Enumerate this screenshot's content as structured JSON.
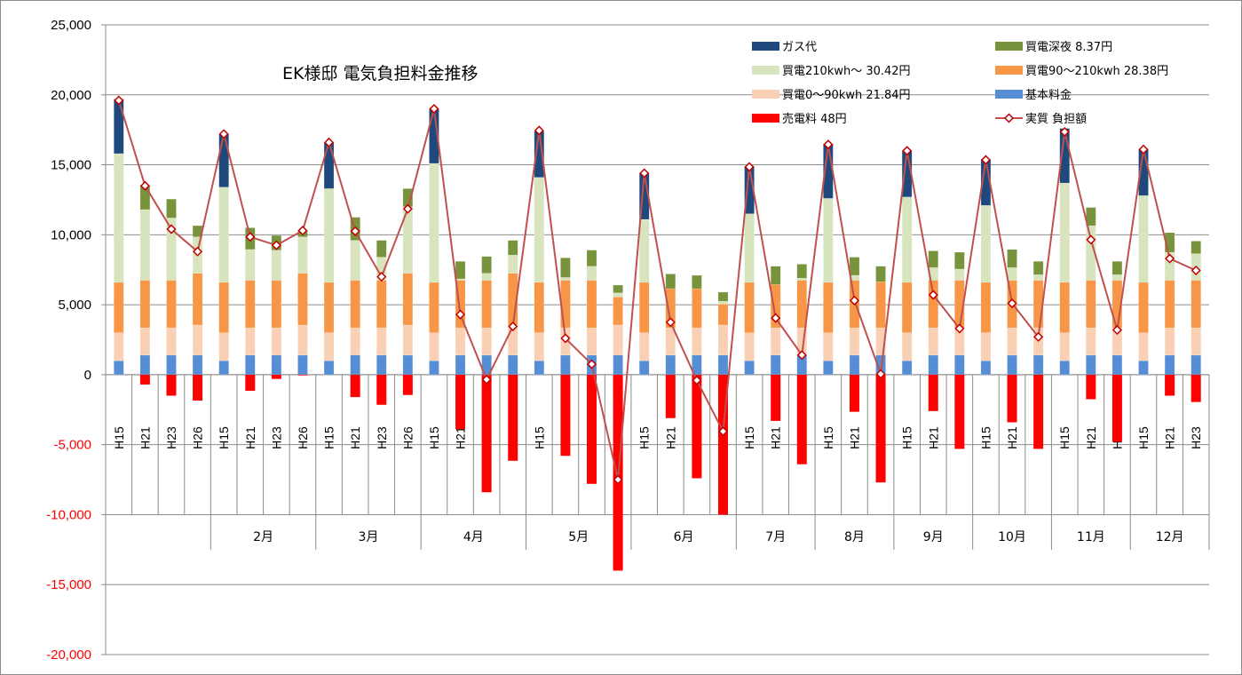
{
  "chart_data": {
    "type": "bar",
    "title": "EK様邸  電気負担料金推移",
    "ylim": [
      -20000,
      25000
    ],
    "yticks": [
      {
        "v": 25000,
        "label": "25,000"
      },
      {
        "v": 20000,
        "label": "20,000"
      },
      {
        "v": 15000,
        "label": "15,000"
      },
      {
        "v": 10000,
        "label": "10,000"
      },
      {
        "v": 5000,
        "label": "5,000"
      },
      {
        "v": 0,
        "label": "0"
      },
      {
        "v": -5000,
        "label": "-5,000"
      },
      {
        "v": -10000,
        "label": "-10,000"
      },
      {
        "v": -15000,
        "label": "-15,000"
      },
      {
        "v": -20000,
        "label": "-20,000"
      }
    ],
    "groups": [
      {
        "month": "",
        "years": [
          "H15",
          "H21",
          "H23",
          "H26"
        ]
      },
      {
        "month": "2月",
        "years": [
          "H15",
          "H21",
          "H23",
          "H26"
        ]
      },
      {
        "month": "3月",
        "years": [
          "H15",
          "H21",
          "H23",
          "H26"
        ]
      },
      {
        "month": "4月",
        "years": [
          "H15",
          "H21",
          "H23",
          "H26"
        ]
      },
      {
        "month": "5月",
        "years": [
          "H15",
          "H21",
          "H23",
          "H26"
        ]
      },
      {
        "month": "6月",
        "years": [
          "H15",
          "H21",
          "H23",
          "H26"
        ]
      },
      {
        "month": "7月",
        "years": [
          "H15",
          "H21",
          "H23"
        ]
      },
      {
        "month": "8月",
        "years": [
          "H15",
          "H21",
          "H23"
        ]
      },
      {
        "month": "9月",
        "years": [
          "H15",
          "H21",
          "H23"
        ]
      },
      {
        "month": "10月",
        "years": [
          "H15",
          "H21",
          "H23"
        ]
      },
      {
        "month": "11月",
        "years": [
          "H15",
          "H21",
          "H23"
        ]
      },
      {
        "month": "12月",
        "years": [
          "H15",
          "H21",
          "H23"
        ]
      }
    ],
    "stack_series": [
      {
        "key": "base",
        "name": "基本料金",
        "color": "#558ED5"
      },
      {
        "key": "t1",
        "name": "買電0～90kwh 21.84円",
        "color": "#FAD0B4"
      },
      {
        "key": "t2",
        "name": "買電90～210kwh 28.38円",
        "color": "#F79646"
      },
      {
        "key": "t3",
        "name": "買電210kwh～ 30.42円",
        "color": "#D7E4BD"
      },
      {
        "key": "night",
        "name": "買電深夜 8.37円",
        "color": "#77933C"
      },
      {
        "key": "gas",
        "name": "ガス代",
        "color": "#1F497D"
      }
    ],
    "sell_series": {
      "name": "売電料 48円",
      "color": "#FF0000"
    },
    "line_series": {
      "name": "実質 負担額",
      "color": "#C0504D"
    },
    "bars": [
      {
        "base": 1000,
        "t1": 2000,
        "t2": 3600,
        "t3": 9200,
        "night": 0,
        "gas": 3900,
        "sell": 0,
        "net": 19600
      },
      {
        "base": 1400,
        "t1": 1950,
        "t2": 3400,
        "t3": 5050,
        "night": 1700,
        "gas": 0,
        "sell": -700,
        "net": 13500
      },
      {
        "base": 1400,
        "t1": 1950,
        "t2": 3400,
        "t3": 4450,
        "night": 1350,
        "gas": 0,
        "sell": -1500,
        "net": 10400
      },
      {
        "base": 1400,
        "t1": 2150,
        "t2": 3700,
        "t3": 2600,
        "night": 800,
        "gas": 0,
        "sell": -1850,
        "net": 8800
      },
      {
        "base": 1000,
        "t1": 2000,
        "t2": 3600,
        "t3": 6800,
        "night": 0,
        "gas": 3800,
        "sell": 0,
        "net": 17200
      },
      {
        "base": 1400,
        "t1": 1950,
        "t2": 3400,
        "t3": 2200,
        "night": 1550,
        "gas": 0,
        "sell": -1150,
        "net": 9850
      },
      {
        "base": 1400,
        "t1": 1950,
        "t2": 3400,
        "t3": 2150,
        "night": 1050,
        "gas": 0,
        "sell": -300,
        "net": 9250
      },
      {
        "base": 1400,
        "t1": 2150,
        "t2": 3700,
        "t3": 2600,
        "night": 500,
        "gas": 0,
        "sell": -50,
        "net": 10300
      },
      {
        "base": 1000,
        "t1": 2000,
        "t2": 3600,
        "t3": 6700,
        "night": 0,
        "gas": 3300,
        "sell": 0,
        "net": 16600
      },
      {
        "base": 1400,
        "t1": 1950,
        "t2": 3400,
        "t3": 2850,
        "night": 1650,
        "gas": 0,
        "sell": -1600,
        "net": 10250
      },
      {
        "base": 1400,
        "t1": 1950,
        "t2": 3400,
        "t3": 1650,
        "night": 1200,
        "gas": 0,
        "sell": -2150,
        "net": 7000
      },
      {
        "base": 1400,
        "t1": 2150,
        "t2": 3700,
        "t3": 4750,
        "night": 1300,
        "gas": 0,
        "sell": -1450,
        "net": 11850
      },
      {
        "base": 1000,
        "t1": 2000,
        "t2": 3600,
        "t3": 8500,
        "night": 0,
        "gas": 3900,
        "sell": 0,
        "net": 19000
      },
      {
        "base": 1400,
        "t1": 1950,
        "t2": 3400,
        "t3": 100,
        "night": 1250,
        "gas": 0,
        "sell": -3900,
        "net": 4300
      },
      {
        "base": 1400,
        "t1": 1950,
        "t2": 3400,
        "t3": 500,
        "night": 1200,
        "gas": 0,
        "sell": -8400,
        "net": -350
      },
      {
        "base": 1400,
        "t1": 2150,
        "t2": 3700,
        "t3": 1300,
        "night": 1050,
        "gas": 0,
        "sell": -6150,
        "net": 3450
      },
      {
        "base": 1000,
        "t1": 2000,
        "t2": 3600,
        "t3": 7500,
        "night": 0,
        "gas": 3300,
        "sell": 0,
        "net": 17450
      },
      {
        "base": 1400,
        "t1": 1950,
        "t2": 3400,
        "t3": 200,
        "night": 1400,
        "gas": 0,
        "sell": -5800,
        "net": 2600
      },
      {
        "base": 1400,
        "t1": 1950,
        "t2": 3400,
        "t3": 1000,
        "night": 1150,
        "gas": 0,
        "sell": -7800,
        "net": 750
      },
      {
        "base": 1400,
        "t1": 2150,
        "t2": 2000,
        "t3": 300,
        "night": 550,
        "gas": 0,
        "sell": -14000,
        "net": -7500
      },
      {
        "base": 1000,
        "t1": 2000,
        "t2": 3600,
        "t3": 4500,
        "night": 0,
        "gas": 3300,
        "sell": 0,
        "net": 14400
      },
      {
        "base": 1400,
        "t1": 1950,
        "t2": 2800,
        "t3": 0,
        "night": 1050,
        "gas": 0,
        "sell": -3100,
        "net": 3750
      },
      {
        "base": 1400,
        "t1": 1950,
        "t2": 2800,
        "t3": 0,
        "night": 950,
        "gas": 0,
        "sell": -7400,
        "net": -400
      },
      {
        "base": 1400,
        "t1": 2150,
        "t2": 1500,
        "t3": 200,
        "night": 650,
        "gas": 0,
        "sell": -10000,
        "net": -4050
      },
      {
        "base": 1000,
        "t1": 2000,
        "t2": 3600,
        "t3": 4900,
        "night": 0,
        "gas": 3400,
        "sell": 0,
        "net": 14850
      },
      {
        "base": 1400,
        "t1": 1950,
        "t2": 3100,
        "t3": 0,
        "night": 1300,
        "gas": 0,
        "sell": -3300,
        "net": 4050
      },
      {
        "base": 1400,
        "t1": 1950,
        "t2": 3400,
        "t3": 150,
        "night": 1000,
        "gas": 0,
        "sell": -6400,
        "net": 1400
      },
      {
        "base": 1000,
        "t1": 2000,
        "t2": 3600,
        "t3": 6000,
        "night": 0,
        "gas": 3900,
        "sell": 0,
        "net": 16450
      },
      {
        "base": 1400,
        "t1": 1950,
        "t2": 3400,
        "t3": 350,
        "night": 1300,
        "gas": 0,
        "sell": -2650,
        "net": 5300
      },
      {
        "base": 1400,
        "t1": 1950,
        "t2": 3300,
        "t3": 0,
        "night": 1100,
        "gas": 0,
        "sell": -7700,
        "net": 50
      },
      {
        "base": 1000,
        "t1": 2000,
        "t2": 3600,
        "t3": 6100,
        "night": 0,
        "gas": 3300,
        "sell": 0,
        "net": 16000
      },
      {
        "base": 1400,
        "t1": 1950,
        "t2": 3400,
        "t3": 900,
        "night": 1200,
        "gas": 0,
        "sell": -2600,
        "net": 5700
      },
      {
        "base": 1400,
        "t1": 1950,
        "t2": 3400,
        "t3": 800,
        "night": 1200,
        "gas": 0,
        "sell": -5300,
        "net": 3300
      },
      {
        "base": 1000,
        "t1": 2000,
        "t2": 3600,
        "t3": 5500,
        "night": 0,
        "gas": 3300,
        "sell": 0,
        "net": 15350
      },
      {
        "base": 1400,
        "t1": 1950,
        "t2": 3400,
        "t3": 900,
        "night": 1300,
        "gas": 0,
        "sell": -3400,
        "net": 5100
      },
      {
        "base": 1400,
        "t1": 1950,
        "t2": 3400,
        "t3": 400,
        "night": 950,
        "gas": 0,
        "sell": -5300,
        "net": 2700
      },
      {
        "base": 1000,
        "t1": 2000,
        "t2": 3600,
        "t3": 7100,
        "night": 0,
        "gas": 3900,
        "sell": 0,
        "net": 17350
      },
      {
        "base": 1400,
        "t1": 1950,
        "t2": 3400,
        "t3": 3900,
        "night": 1300,
        "gas": 0,
        "sell": -1750,
        "net": 9650
      },
      {
        "base": 1400,
        "t1": 1950,
        "t2": 3400,
        "t3": 400,
        "night": 950,
        "gas": 0,
        "sell": -4800,
        "net": 3200
      },
      {
        "base": 1000,
        "t1": 2000,
        "t2": 3600,
        "t3": 6200,
        "night": 0,
        "gas": 3300,
        "sell": 0,
        "net": 16100
      },
      {
        "base": 1400,
        "t1": 1950,
        "t2": 3400,
        "t3": 2000,
        "night": 1400,
        "gas": 0,
        "sell": -1500,
        "net": 8300
      },
      {
        "base": 1400,
        "t1": 1950,
        "t2": 3400,
        "t3": 1900,
        "night": 900,
        "gas": 0,
        "sell": -1950,
        "net": 7450
      }
    ],
    "legend": {
      "placement": "top-right",
      "rows": [
        [
          {
            "label": "ガス代",
            "kind": "box",
            "color": "#1F497D"
          },
          {
            "label": "買電深夜 8.37円",
            "kind": "box",
            "color": "#77933C"
          }
        ],
        [
          {
            "label": "買電210kwh～ 30.42円",
            "kind": "box",
            "color": "#D7E4BD"
          },
          {
            "label": "買電90～210kwh 28.38円",
            "kind": "box",
            "color": "#F79646"
          }
        ],
        [
          {
            "label": "買電0～90kwh 21.84円",
            "kind": "box",
            "color": "#FAD0B4"
          },
          {
            "label": "基本料金",
            "kind": "box",
            "color": "#558ED5"
          }
        ],
        [
          {
            "label": "売電料 48円",
            "kind": "box",
            "color": "#FF0000"
          },
          {
            "label": "実質 負担額",
            "kind": "line",
            "color": "#C0504D"
          }
        ]
      ]
    },
    "grid": true
  }
}
